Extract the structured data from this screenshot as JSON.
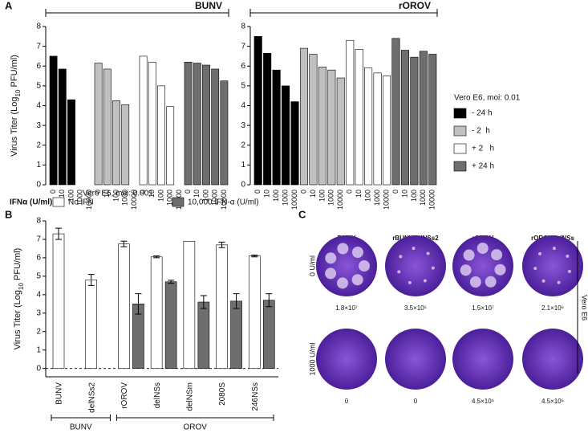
{
  "panel_labels": [
    "A",
    "B",
    "C"
  ],
  "chart_data": [
    {
      "type": "bar",
      "title": "BUNV",
      "x_label": "IFNα (U/ml)",
      "y_label": {
        "pre": "Virus Titer (Log",
        "sub": "10",
        "post": " PFU/ml)"
      },
      "categories": [
        "0",
        "10",
        "100",
        "1000",
        "10000"
      ],
      "ylim": [
        0,
        8
      ],
      "yticks": [
        0,
        1,
        2,
        3,
        4,
        5,
        6,
        7,
        8
      ],
      "legend_title": "Vero E6, moi: 0.01",
      "series": [
        {
          "name": "- 24 h",
          "color": "#000000",
          "values": [
            6.5,
            5.85,
            4.3,
            null,
            null
          ]
        },
        {
          "name": "- 2  h",
          "color": "#c0c0c0",
          "values": [
            6.15,
            5.85,
            4.25,
            4.05,
            null
          ]
        },
        {
          "name": "+ 2   h",
          "color": "#ffffff",
          "values": [
            6.5,
            6.2,
            5.0,
            3.95,
            null
          ]
        },
        {
          "name": "+ 24 h",
          "color": "#6e6e6e",
          "values": [
            6.2,
            6.15,
            6.05,
            5.85,
            5.25
          ]
        }
      ]
    },
    {
      "type": "bar",
      "title": "rOROV",
      "categories": [
        "0",
        "10",
        "100",
        "1000",
        "10000"
      ],
      "ylim": [
        0,
        8
      ],
      "yticks": [
        0,
        1,
        2,
        3,
        4,
        5,
        6,
        7,
        8
      ],
      "series": [
        {
          "color": "#000000",
          "values": [
            7.5,
            6.65,
            5.8,
            5.0,
            4.2
          ]
        },
        {
          "color": "#c0c0c0",
          "values": [
            6.9,
            6.6,
            5.95,
            5.8,
            5.4
          ]
        },
        {
          "color": "#ffffff",
          "values": [
            7.3,
            6.85,
            5.9,
            5.65,
            5.5
          ]
        },
        {
          "color": "#6e6e6e",
          "values": [
            7.4,
            6.8,
            6.45,
            6.75,
            6.6
          ]
        }
      ]
    },
    {
      "type": "errorbar",
      "subtitle": "Vero E6, moi: 0.001",
      "y_label": {
        "pre": "Virus Titer (Log",
        "sub": "10",
        "post": " PFU/ml)"
      },
      "categories": [
        "BUNV",
        "delNSs2",
        "rOROV",
        "delNSs",
        "delNSm",
        "2080S",
        "246NSs"
      ],
      "ylim": [
        -0.45,
        8
      ],
      "yticks": [
        0,
        1,
        2,
        3,
        4,
        5,
        6,
        7,
        8
      ],
      "reference_line": 0,
      "groups": [
        {
          "label": "BUNV",
          "from": 0,
          "to": 1
        },
        {
          "label": "OROV",
          "from": 2,
          "to": 6
        }
      ],
      "series": [
        {
          "name": "No IFN",
          "color": "#ffffff",
          "values": [
            7.3,
            4.8,
            6.75,
            6.05,
            6.9,
            6.7,
            6.1
          ],
          "errors": [
            0.3,
            0.3,
            0.15,
            0.05,
            null,
            0.15,
            0.05
          ]
        },
        {
          "name": "10,000 IFN-α (U/ml)",
          "color": "#6e6e6e",
          "values": [
            null,
            null,
            3.5,
            4.7,
            3.6,
            3.65,
            3.7
          ],
          "errors": [
            null,
            null,
            0.55,
            0.08,
            0.35,
            0.4,
            0.35
          ]
        }
      ]
    }
  ],
  "plaques": {
    "columns": [
      "BUNV",
      "rBUNVdelNSs2",
      "rOROV",
      "rOROVdelNSs"
    ],
    "rows": [
      "0 U/ml",
      "1000 U/ml"
    ],
    "side_label": "Vero E6",
    "titers": [
      [
        "1.8×10⁷",
        "3.5×10⁵",
        "1.5×10⁷",
        "2.1×10⁶"
      ],
      [
        "0",
        "0",
        "4.5×10⁶",
        "4.5×10⁵"
      ]
    ]
  }
}
